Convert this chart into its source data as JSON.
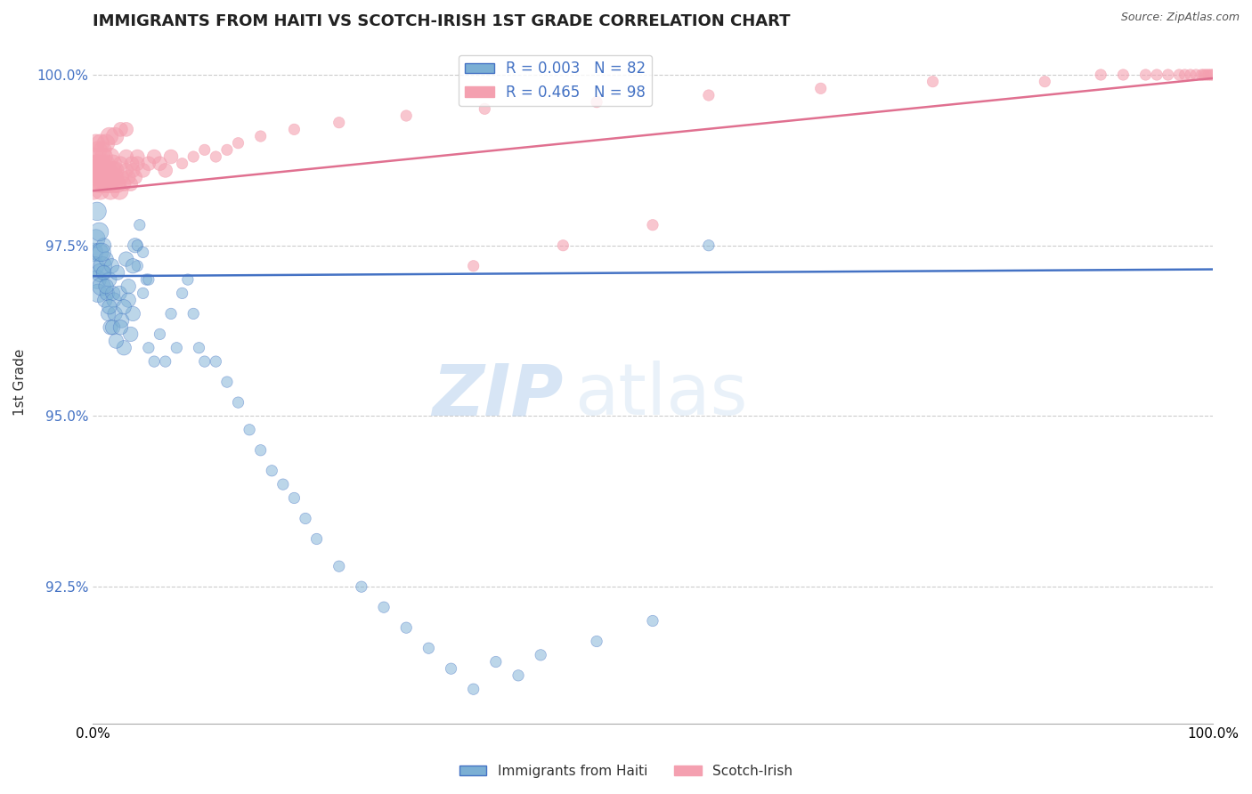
{
  "title": "IMMIGRANTS FROM HAITI VS SCOTCH-IRISH 1ST GRADE CORRELATION CHART",
  "source": "Source: ZipAtlas.com",
  "ylabel": "1st Grade",
  "xlim": [
    0.0,
    1.0
  ],
  "ylim": [
    0.905,
    1.005
  ],
  "yticks": [
    0.925,
    0.95,
    0.975,
    1.0
  ],
  "ytick_labels": [
    "92.5%",
    "95.0%",
    "97.5%",
    "100.0%"
  ],
  "watermark": "ZIPatlas",
  "haiti_color": "#7bafd4",
  "scotch_color": "#f4a0b0",
  "haiti_line_color": "#4472c4",
  "scotch_line_color": "#e07090",
  "background_color": "#ffffff",
  "grid_color": "#cccccc",
  "title_fontsize": 13,
  "axis_label_fontsize": 11,
  "tick_fontsize": 11,
  "haiti_x": [
    0.001,
    0.002,
    0.003,
    0.004,
    0.005,
    0.006,
    0.007,
    0.008,
    0.009,
    0.01,
    0.011,
    0.012,
    0.013,
    0.014,
    0.015,
    0.016,
    0.017,
    0.018,
    0.019,
    0.02,
    0.022,
    0.024,
    0.026,
    0.028,
    0.03,
    0.032,
    0.034,
    0.036,
    0.038,
    0.04,
    0.042,
    0.045,
    0.048,
    0.05,
    0.055,
    0.06,
    0.065,
    0.07,
    0.075,
    0.08,
    0.085,
    0.09,
    0.095,
    0.1,
    0.11,
    0.12,
    0.13,
    0.14,
    0.15,
    0.16,
    0.17,
    0.18,
    0.19,
    0.2,
    0.22,
    0.24,
    0.26,
    0.28,
    0.3,
    0.32,
    0.34,
    0.36,
    0.38,
    0.4,
    0.45,
    0.5,
    0.55,
    0.004,
    0.006,
    0.008,
    0.01,
    0.012,
    0.015,
    0.018,
    0.021,
    0.025,
    0.028,
    0.032,
    0.036,
    0.04,
    0.045,
    0.05
  ],
  "haiti_y": [
    0.974,
    0.972,
    0.976,
    0.97,
    0.968,
    0.974,
    0.971,
    0.969,
    0.972,
    0.975,
    0.967,
    0.973,
    0.968,
    0.965,
    0.97,
    0.963,
    0.972,
    0.968,
    0.967,
    0.965,
    0.971,
    0.968,
    0.964,
    0.96,
    0.973,
    0.967,
    0.962,
    0.965,
    0.975,
    0.972,
    0.978,
    0.968,
    0.97,
    0.96,
    0.958,
    0.962,
    0.958,
    0.965,
    0.96,
    0.968,
    0.97,
    0.965,
    0.96,
    0.958,
    0.958,
    0.955,
    0.952,
    0.948,
    0.945,
    0.942,
    0.94,
    0.938,
    0.935,
    0.932,
    0.928,
    0.925,
    0.922,
    0.919,
    0.916,
    0.913,
    0.91,
    0.914,
    0.912,
    0.915,
    0.917,
    0.92,
    0.975,
    0.98,
    0.977,
    0.974,
    0.971,
    0.969,
    0.966,
    0.963,
    0.961,
    0.963,
    0.966,
    0.969,
    0.972,
    0.975,
    0.974,
    0.97
  ],
  "scotch_x": [
    0.0,
    0.001,
    0.002,
    0.003,
    0.004,
    0.005,
    0.006,
    0.007,
    0.008,
    0.009,
    0.01,
    0.011,
    0.012,
    0.013,
    0.014,
    0.015,
    0.016,
    0.017,
    0.018,
    0.019,
    0.02,
    0.022,
    0.024,
    0.026,
    0.028,
    0.03,
    0.032,
    0.034,
    0.036,
    0.038,
    0.04,
    0.045,
    0.05,
    0.055,
    0.06,
    0.065,
    0.07,
    0.08,
    0.09,
    0.1,
    0.11,
    0.12,
    0.13,
    0.15,
    0.18,
    0.22,
    0.28,
    0.35,
    0.45,
    0.55,
    0.65,
    0.75,
    0.85,
    0.9,
    0.92,
    0.94,
    0.95,
    0.96,
    0.97,
    0.975,
    0.98,
    0.985,
    0.99,
    0.992,
    0.994,
    0.996,
    0.998,
    1.0,
    0.002,
    0.003,
    0.004,
    0.005,
    0.006,
    0.007,
    0.008,
    0.009,
    0.01,
    0.012,
    0.014,
    0.016,
    0.018,
    0.02,
    0.025,
    0.03,
    0.035,
    0.04,
    0.003,
    0.005,
    0.007,
    0.009,
    0.012,
    0.015,
    0.02,
    0.025,
    0.03,
    0.34,
    0.42,
    0.5
  ],
  "scotch_y": [
    0.985,
    0.983,
    0.986,
    0.987,
    0.985,
    0.986,
    0.984,
    0.983,
    0.985,
    0.984,
    0.986,
    0.985,
    0.984,
    0.986,
    0.985,
    0.984,
    0.983,
    0.985,
    0.986,
    0.984,
    0.985,
    0.984,
    0.983,
    0.985,
    0.984,
    0.986,
    0.985,
    0.984,
    0.986,
    0.985,
    0.987,
    0.986,
    0.987,
    0.988,
    0.987,
    0.986,
    0.988,
    0.987,
    0.988,
    0.989,
    0.988,
    0.989,
    0.99,
    0.991,
    0.992,
    0.993,
    0.994,
    0.995,
    0.996,
    0.997,
    0.998,
    0.999,
    0.999,
    1.0,
    1.0,
    1.0,
    1.0,
    1.0,
    1.0,
    1.0,
    1.0,
    1.0,
    1.0,
    1.0,
    1.0,
    1.0,
    1.0,
    1.0,
    0.988,
    0.987,
    0.986,
    0.987,
    0.986,
    0.985,
    0.987,
    0.986,
    0.988,
    0.987,
    0.986,
    0.988,
    0.987,
    0.986,
    0.987,
    0.988,
    0.987,
    0.988,
    0.99,
    0.989,
    0.99,
    0.989,
    0.99,
    0.991,
    0.991,
    0.992,
    0.992,
    0.972,
    0.975,
    0.978
  ],
  "haiti_line_y_start": 0.9705,
  "haiti_line_y_end": 0.9715,
  "scotch_line_x_start": 0.0,
  "scotch_line_x_end": 1.0,
  "scotch_line_y_start": 0.983,
  "scotch_line_y_end": 0.9995
}
